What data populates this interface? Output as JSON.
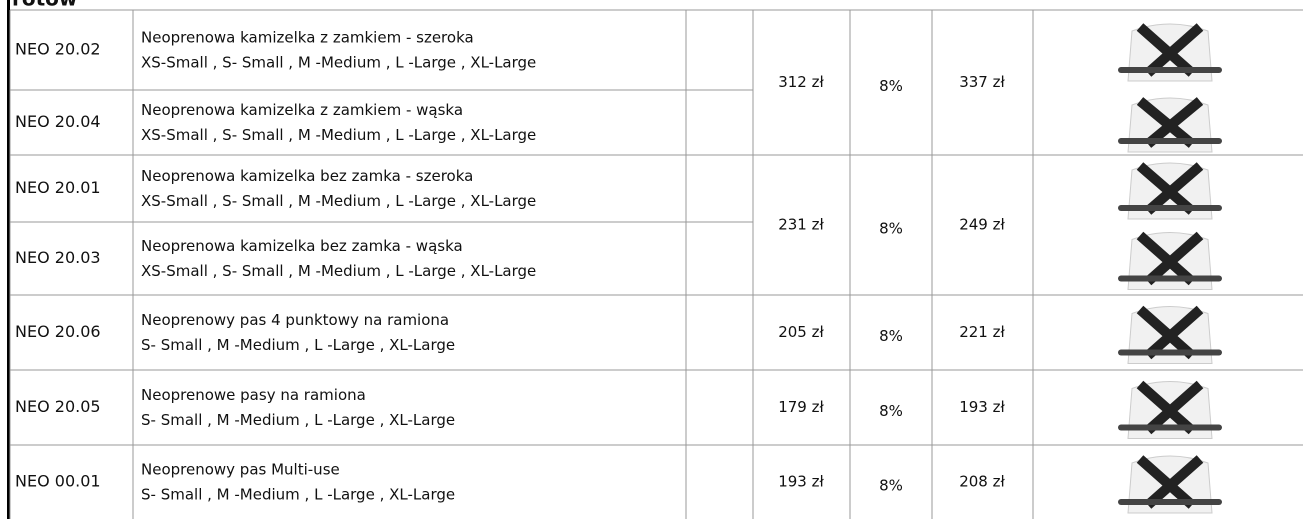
{
  "header": {
    "title": "rotów"
  },
  "table": {
    "rows": [
      {
        "code": "NEO 20.02",
        "name": "Neoprenowa kamizelka z zamkiem - szeroka",
        "sizes": "XS-Small , S- Small , M -Medium , L -Large , XL-Large"
      },
      {
        "code": "NEO 20.04",
        "name": "Neoprenowa kamizelka z zamkiem - wąska",
        "sizes": "XS-Small , S- Small , M -Medium , L -Large , XL-Large"
      },
      {
        "code": "NEO 20.01",
        "name": "Neoprenowa kamizelka bez zamka - szeroka",
        "sizes": "XS-Small , S- Small , M -Medium , L -Large , XL-Large"
      },
      {
        "code": "NEO 20.03",
        "name": "Neoprenowa kamizelka bez zamka - wąska",
        "sizes": "XS-Small , S- Small , M -Medium , L -Large , XL-Large"
      },
      {
        "code": "NEO 20.06",
        "name": "Neoprenowy pas 4 punktowy na ramiona",
        "sizes": "S- Small , M -Medium , L -Large , XL-Large"
      },
      {
        "code": "NEO 20.05",
        "name": "Neoprenowe pasy na ramiona",
        "sizes": "S- Small , M -Medium , L -Large , XL-Large"
      },
      {
        "code": "NEO 00.01",
        "name": "Neoprenowy pas Multi-use",
        "sizes": "S- Small , M -Medium , L -Large , XL-Large"
      }
    ],
    "prices": [
      {
        "net": "312 zł",
        "vat": "8%",
        "gross": "337 zł"
      },
      {
        "net": "231 zł",
        "vat": "8%",
        "gross": "249 zł"
      },
      {
        "net": "205 zł",
        "vat": "8%",
        "gross": "221 zł"
      },
      {
        "net": "179 zł",
        "vat": "8%",
        "gross": "193 zł"
      },
      {
        "net": "193 zł",
        "vat": "8%",
        "gross": "208 zł"
      }
    ]
  }
}
